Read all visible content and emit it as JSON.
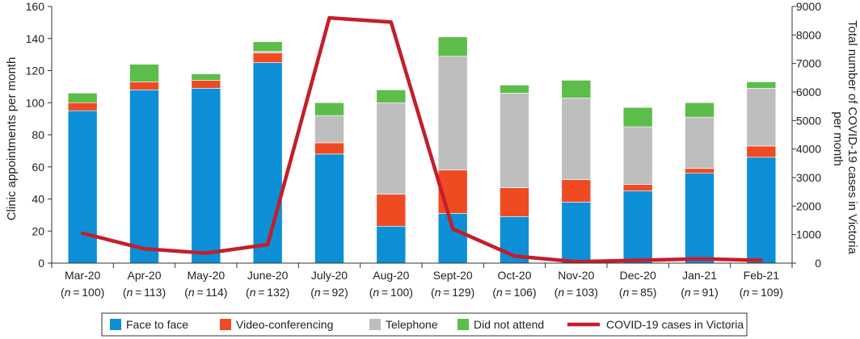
{
  "chart_data": {
    "type": "bar",
    "stacked": true,
    "categories": [
      "Mar-20",
      "Apr-20",
      "May-20",
      "June-20",
      "July-20",
      "Aug-20",
      "Sept-20",
      "Oct-20",
      "Nov-20",
      "Dec-20",
      "Jan-21",
      "Feb-21"
    ],
    "n_labels": [
      "100",
      "113",
      "114",
      "132",
      "92",
      "100",
      "129",
      "106",
      "103",
      "85",
      "91",
      "109"
    ],
    "n_prefix": "n",
    "series": [
      {
        "name": "Face to face",
        "color": "#0c8fd6",
        "values": [
          95,
          108,
          109,
          125,
          68,
          23,
          31,
          29,
          38,
          45,
          56,
          66
        ]
      },
      {
        "name": "Video-conferencing",
        "color": "#ef4b23",
        "values": [
          5,
          5,
          5,
          6,
          7,
          20,
          27,
          18,
          14,
          4,
          3,
          7
        ]
      },
      {
        "name": "Telephone",
        "color": "#bfbebe",
        "values": [
          0,
          0,
          0,
          1,
          17,
          57,
          71,
          59,
          51,
          36,
          32,
          36
        ]
      },
      {
        "name": "Did not attend",
        "color": "#5cbd4a",
        "values": [
          6,
          11,
          4,
          6,
          8,
          8,
          12,
          5,
          11,
          12,
          9,
          4
        ]
      }
    ],
    "line_series": {
      "name": "COVID-19 cases in Victoria",
      "color": "#c41e2a",
      "axis": "right",
      "values": [
        1050,
        500,
        350,
        650,
        8600,
        8450,
        1200,
        250,
        50,
        100,
        150,
        100
      ]
    },
    "ylabel": "Clinic appointments per month",
    "ylim": [
      0,
      160
    ],
    "yticks": [
      0,
      20,
      40,
      60,
      80,
      100,
      120,
      140,
      160
    ],
    "y2label_lines": [
      "Total number of COVID-19 cases in Victoria",
      "per month"
    ],
    "y2lim": [
      0,
      9000
    ],
    "y2ticks": [
      0,
      1000,
      2000,
      3000,
      4000,
      5000,
      6000,
      7000,
      8000,
      9000
    ],
    "grid": false,
    "legend_position": "bottom"
  }
}
